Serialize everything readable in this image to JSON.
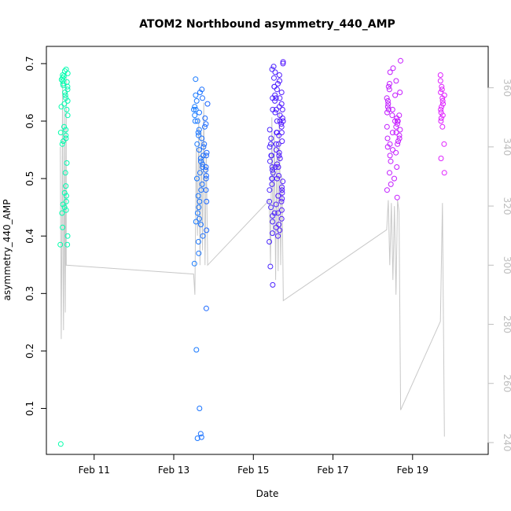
{
  "chart_data": {
    "type": "scatter",
    "title": "ATOM2 Northbound asymmetry_440_AMP",
    "xlabel": "Date",
    "ylabel": "asymmetry_440_AMP",
    "xlim_days": [
      9.8,
      20.9
    ],
    "ylim": [
      0.02,
      0.73
    ],
    "y2lim": [
      236,
      374
    ],
    "x_ticks": [
      {
        "value": 11,
        "label": "Feb 11"
      },
      {
        "value": 13,
        "label": "Feb 13"
      },
      {
        "value": 15,
        "label": "Feb 15"
      },
      {
        "value": 17,
        "label": "Feb 17"
      },
      {
        "value": 19,
        "label": "Feb 19"
      }
    ],
    "y_ticks": [
      0.1,
      0.2,
      0.3,
      0.4,
      0.5,
      0.6,
      0.7
    ],
    "y_tick_labels": [
      "0.1",
      "0.2",
      "0.3",
      "0.4",
      "0.5",
      "0.6",
      "0.7"
    ],
    "y2_ticks": [
      240,
      260,
      280,
      300,
      320,
      340,
      360
    ],
    "y2_tick_labels": [
      "240",
      "260",
      "280",
      "300",
      "320",
      "340",
      "360"
    ],
    "point_color_ramp": [
      "#00ffaa",
      "#00d6ff",
      "#1e5cff",
      "#5a12ff",
      "#b51aff",
      "#e020ff"
    ],
    "line_color": "#c8c8c8",
    "clusters": [
      {
        "day_range": [
          10.15,
          10.35
        ],
        "y_values": [
          0.385,
          0.4,
          0.415,
          0.44,
          0.445,
          0.45,
          0.455,
          0.46,
          0.47,
          0.475,
          0.487,
          0.51,
          0.527,
          0.56,
          0.565,
          0.57,
          0.575,
          0.58,
          0.585,
          0.59,
          0.61,
          0.62,
          0.625,
          0.63,
          0.635,
          0.64,
          0.645,
          0.65,
          0.655,
          0.66,
          0.662,
          0.665,
          0.668,
          0.67,
          0.672,
          0.675,
          0.678,
          0.68,
          0.683,
          0.687,
          0.69,
          0.385,
          0.038
        ]
      },
      {
        "day_range": [
          13.5,
          13.85
        ],
        "y_values": [
          0.048,
          0.05,
          0.056,
          0.1,
          0.202,
          0.274,
          0.352,
          0.37,
          0.39,
          0.4,
          0.41,
          0.42,
          0.425,
          0.43,
          0.44,
          0.45,
          0.46,
          0.47,
          0.48,
          0.49,
          0.5,
          0.505,
          0.51,
          0.515,
          0.52,
          0.525,
          0.53,
          0.535,
          0.54,
          0.545,
          0.55,
          0.555,
          0.56,
          0.57,
          0.575,
          0.58,
          0.585,
          0.59,
          0.595,
          0.6,
          0.605,
          0.61,
          0.615,
          0.62,
          0.625,
          0.63,
          0.635,
          0.64,
          0.645,
          0.65,
          0.655,
          0.673,
          0.46,
          0.48,
          0.5,
          0.52,
          0.54,
          0.56,
          0.6,
          0.62
        ]
      },
      {
        "day_range": [
          15.4,
          15.75
        ],
        "y_values": [
          0.315,
          0.347,
          0.39,
          0.4,
          0.405,
          0.41,
          0.415,
          0.42,
          0.425,
          0.43,
          0.435,
          0.44,
          0.445,
          0.45,
          0.455,
          0.46,
          0.465,
          0.47,
          0.475,
          0.48,
          0.485,
          0.49,
          0.495,
          0.5,
          0.505,
          0.51,
          0.515,
          0.52,
          0.525,
          0.53,
          0.535,
          0.54,
          0.545,
          0.55,
          0.555,
          0.56,
          0.565,
          0.57,
          0.575,
          0.58,
          0.585,
          0.59,
          0.595,
          0.6,
          0.605,
          0.61,
          0.615,
          0.62,
          0.625,
          0.63,
          0.635,
          0.64,
          0.645,
          0.65,
          0.655,
          0.66,
          0.665,
          0.67,
          0.675,
          0.68,
          0.685,
          0.69,
          0.695,
          0.7,
          0.703,
          0.44,
          0.46,
          0.48,
          0.5,
          0.52,
          0.54,
          0.56,
          0.58,
          0.6,
          0.62,
          0.64,
          0.5,
          0.52,
          0.54,
          0.56,
          0.58,
          0.6,
          0.62,
          0.64,
          0.66
        ]
      },
      {
        "day_range": [
          18.35,
          18.7
        ],
        "y_values": [
          0.467,
          0.48,
          0.49,
          0.5,
          0.51,
          0.52,
          0.53,
          0.54,
          0.545,
          0.55,
          0.555,
          0.56,
          0.565,
          0.57,
          0.575,
          0.58,
          0.585,
          0.59,
          0.595,
          0.6,
          0.605,
          0.61,
          0.615,
          0.62,
          0.625,
          0.63,
          0.635,
          0.64,
          0.645,
          0.65,
          0.655,
          0.66,
          0.665,
          0.67,
          0.685,
          0.692,
          0.705,
          0.58,
          0.59,
          0.6,
          0.61,
          0.62,
          0.57,
          0.56,
          0.6
        ]
      },
      {
        "day_range": [
          19.7,
          19.8
        ],
        "y_values": [
          0.51,
          0.535,
          0.56,
          0.59,
          0.6,
          0.605,
          0.61,
          0.615,
          0.62,
          0.625,
          0.63,
          0.635,
          0.64,
          0.645,
          0.65,
          0.655,
          0.66,
          0.67,
          0.68
        ]
      }
    ],
    "secondary_line": {
      "axis": "right",
      "segments": [
        {
          "day_range": [
            10.15,
            10.3
          ],
          "y_values": [
            340,
            305,
            275,
            300,
            330,
            362,
            298,
            278,
            310,
            352,
            300,
            284,
            330,
            365
          ]
        },
        {
          "day_range": [
            10.3,
            13.5
          ],
          "y_values": [
            300,
            297
          ]
        },
        {
          "day_range": [
            13.5,
            13.85
          ],
          "y_values": [
            297,
            290,
            340,
            310,
            350,
            300,
            345,
            305,
            355,
            300,
            338,
            302
          ]
        },
        {
          "day_range": [
            13.85,
            15.4
          ],
          "y_values": [
            300,
            322
          ]
        },
        {
          "day_range": [
            15.4,
            15.75
          ],
          "y_values": [
            322,
            300,
            350,
            310,
            345,
            295,
            340,
            298,
            352,
            300,
            330,
            290
          ]
        },
        {
          "day_range": [
            15.75,
            18.35
          ],
          "y_values": [
            288,
            312
          ]
        },
        {
          "day_range": [
            18.35,
            18.7
          ],
          "y_values": [
            312,
            322,
            300,
            321,
            295,
            320,
            290,
            322,
            318,
            251
          ]
        },
        {
          "day_range": [
            18.7,
            19.7
          ],
          "y_values": [
            251,
            281
          ]
        },
        {
          "day_range": [
            19.7,
            19.8
          ],
          "y_values": [
            281,
            321,
            242
          ]
        }
      ]
    }
  }
}
